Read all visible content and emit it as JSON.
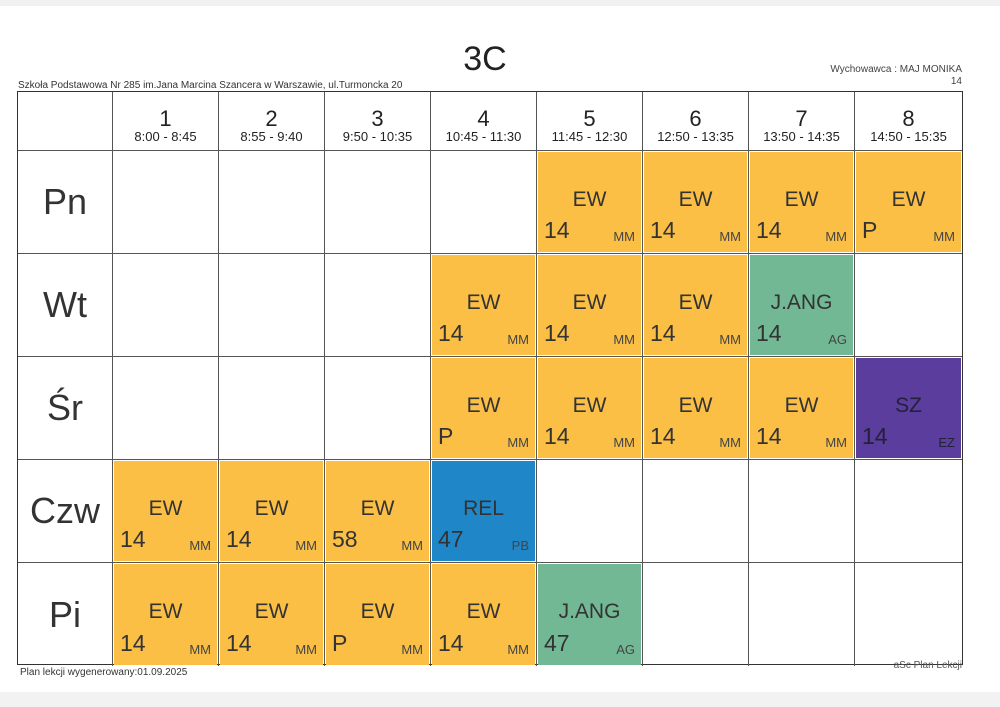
{
  "header": {
    "class_name": "3C",
    "school": "Szkoła Podstawowa Nr 285 im.Jana Marcina Szancera w Warszawie, ul.Turmoncka 20",
    "tutor": "Wychowawca : MAJ MONIKA",
    "tutor_room": "14"
  },
  "periods": [
    {
      "num": "1",
      "time": "8:00 - 8:45"
    },
    {
      "num": "2",
      "time": "8:55 - 9:40"
    },
    {
      "num": "3",
      "time": "9:50 - 10:35"
    },
    {
      "num": "4",
      "time": "10:45 - 11:30"
    },
    {
      "num": "5",
      "time": "11:45 - 12:30"
    },
    {
      "num": "6",
      "time": "12:50 - 13:35"
    },
    {
      "num": "7",
      "time": "13:50 - 14:35"
    },
    {
      "num": "8",
      "time": "14:50 - 15:35"
    }
  ],
  "days": [
    {
      "label": "Pn",
      "lessons": [
        null,
        null,
        null,
        null,
        {
          "subject": "EW",
          "room": "14",
          "teacher": "MM",
          "color": "ew"
        },
        {
          "subject": "EW",
          "room": "14",
          "teacher": "MM",
          "color": "ew"
        },
        {
          "subject": "EW",
          "room": "14",
          "teacher": "MM",
          "color": "ew"
        },
        {
          "subject": "EW",
          "room": "P",
          "teacher": "MM",
          "color": "ew"
        }
      ]
    },
    {
      "label": "Wt",
      "lessons": [
        null,
        null,
        null,
        {
          "subject": "EW",
          "room": "14",
          "teacher": "MM",
          "color": "ew"
        },
        {
          "subject": "EW",
          "room": "14",
          "teacher": "MM",
          "color": "ew"
        },
        {
          "subject": "EW",
          "room": "14",
          "teacher": "MM",
          "color": "ew"
        },
        {
          "subject": "J.ANG",
          "room": "14",
          "teacher": "AG",
          "color": "ang"
        },
        null
      ]
    },
    {
      "label": "Śr",
      "lessons": [
        null,
        null,
        null,
        {
          "subject": "EW",
          "room": "P",
          "teacher": "MM",
          "color": "ew"
        },
        {
          "subject": "EW",
          "room": "14",
          "teacher": "MM",
          "color": "ew"
        },
        {
          "subject": "EW",
          "room": "14",
          "teacher": "MM",
          "color": "ew"
        },
        {
          "subject": "EW",
          "room": "14",
          "teacher": "MM",
          "color": "ew"
        },
        {
          "subject": "SZ",
          "room": "14",
          "teacher": "EZ",
          "color": "sz"
        }
      ]
    },
    {
      "label": "Czw",
      "lessons": [
        {
          "subject": "EW",
          "room": "14",
          "teacher": "MM",
          "color": "ew"
        },
        {
          "subject": "EW",
          "room": "14",
          "teacher": "MM",
          "color": "ew"
        },
        {
          "subject": "EW",
          "room": "58",
          "teacher": "MM",
          "color": "ew"
        },
        {
          "subject": "REL",
          "room": "47",
          "teacher": "PB",
          "color": "rel"
        },
        null,
        null,
        null,
        null
      ]
    },
    {
      "label": "Pi",
      "lessons": [
        {
          "subject": "EW",
          "room": "14",
          "teacher": "MM",
          "color": "ew"
        },
        {
          "subject": "EW",
          "room": "14",
          "teacher": "MM",
          "color": "ew"
        },
        {
          "subject": "EW",
          "room": "P",
          "teacher": "MM",
          "color": "ew"
        },
        {
          "subject": "EW",
          "room": "14",
          "teacher": "MM",
          "color": "ew"
        },
        {
          "subject": "J.ANG",
          "room": "47",
          "teacher": "AG",
          "color": "ang"
        },
        null,
        null,
        null
      ]
    }
  ],
  "colors": {
    "ew": "#fbbf45",
    "ang": "#72b895",
    "rel": "#1f86c8",
    "sz": "#5a3d9c"
  },
  "footer": {
    "generated": "Plan lekcji wygenerowany:01.09.2025",
    "software": "aSc Plan Lekcji"
  }
}
